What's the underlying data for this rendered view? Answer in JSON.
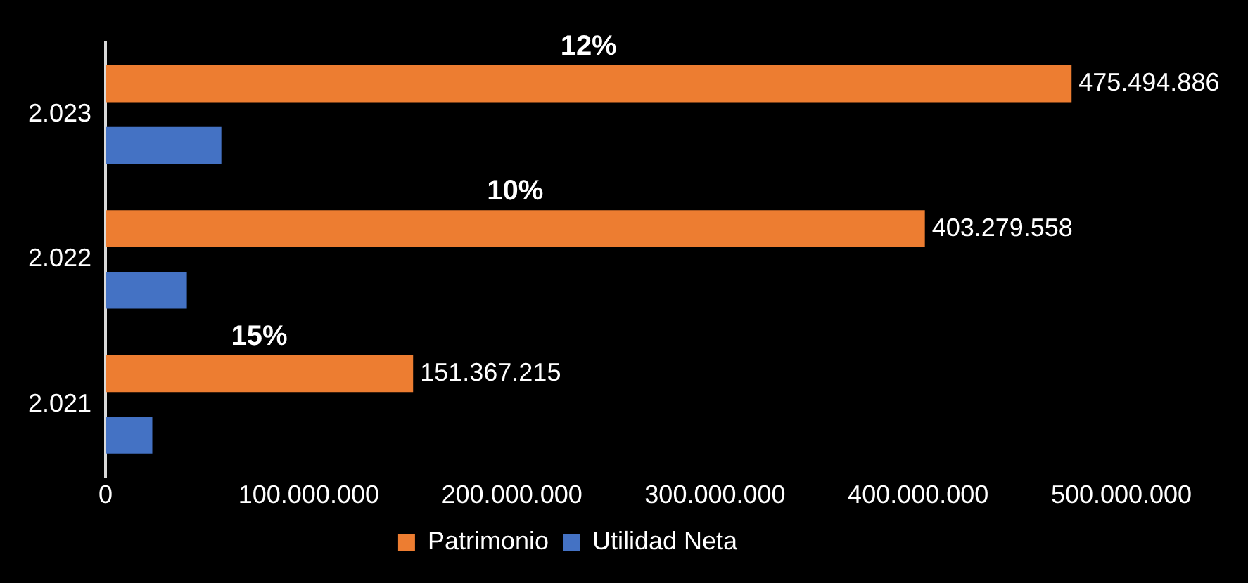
{
  "chart_data": {
    "type": "bar",
    "orientation": "horizontal",
    "categories": [
      "2.023",
      "2.022",
      "2.021"
    ],
    "series": [
      {
        "name": "Patrimonio",
        "color": "#ed7d31",
        "values": [
          475494886,
          403279558,
          151367215
        ],
        "value_labels": [
          "475.494.886",
          "403.279.558",
          "151.367.215"
        ]
      },
      {
        "name": "Utilidad Neta",
        "color": "#4472c4",
        "values": [
          57000000,
          40000000,
          23000000
        ]
      }
    ],
    "xlim": [
      0,
      500000000
    ],
    "xticks": [
      {
        "value": 0,
        "label": "0"
      },
      {
        "value": 100000000,
        "label": "100.000.000"
      },
      {
        "value": 200000000,
        "label": "200.000.000"
      },
      {
        "value": 300000000,
        "label": "300.000.000"
      },
      {
        "value": 400000000,
        "label": "400.000.000"
      },
      {
        "value": 500000000,
        "label": "500.000.000"
      }
    ],
    "annotations": [
      "12%",
      "10%",
      "15%"
    ],
    "grid": false,
    "legend": "bottom"
  }
}
